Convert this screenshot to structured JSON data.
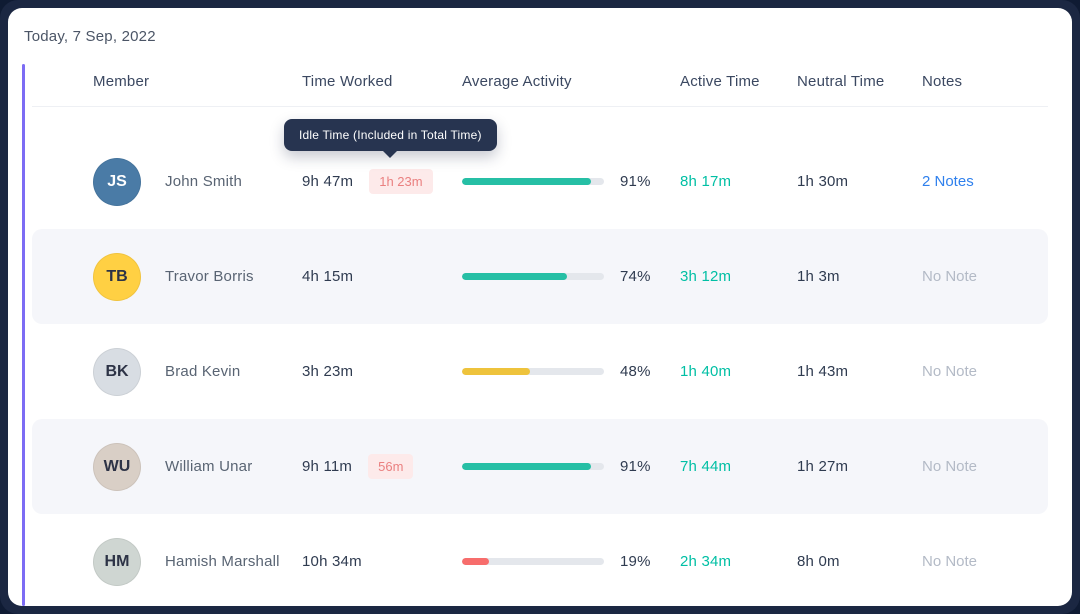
{
  "date_label": "Today, 7 Sep, 2022",
  "colors": {
    "accent": "#7c6cf4",
    "teal": "#26bfa5",
    "yellow": "#eec33c",
    "red": "#f76d6c",
    "link_blue": "#2f80ed"
  },
  "columns": {
    "member": "Member",
    "time_worked": "Time Worked",
    "avg_activity": "Average Activity",
    "active_time": "Active Time",
    "neutral_time": "Neutral Time",
    "notes": "Notes"
  },
  "tooltip": {
    "text": "Idle Time (Included in Total Time)"
  },
  "rows": [
    {
      "name": "John Smith",
      "initials": "JS",
      "avatar_bg": "#4a7ba6",
      "avatar_fg": "#ffffff",
      "time_worked": "9h 47m",
      "idle_time": "1h 23m",
      "activity_pct": "91%",
      "bar_color": "#26bfa5",
      "active_time": "8h 17m",
      "neutral_time": "1h 30m",
      "notes": "2 Notes"
    },
    {
      "name": "Travor Borris",
      "initials": "TB",
      "avatar_bg": "#ffd043",
      "avatar_fg": "#2d3346",
      "time_worked": "4h 15m",
      "activity_pct": "74%",
      "bar_color": "#26bfa5",
      "active_time": "3h 12m",
      "neutral_time": "1h 3m",
      "notes": "No Note"
    },
    {
      "name": "Brad Kevin",
      "initials": "BK",
      "avatar_bg": "#d8dde3",
      "avatar_fg": "#2d3346",
      "time_worked": "3h 23m",
      "activity_pct": "48%",
      "bar_color": "#eec33c",
      "active_time": "1h 40m",
      "neutral_time": "1h 43m",
      "notes": "No Note"
    },
    {
      "name": "William Unar",
      "initials": "WU",
      "avatar_bg": "#d9cfc6",
      "avatar_fg": "#2d3346",
      "time_worked": "9h 11m",
      "idle_time": "56m",
      "activity_pct": "91%",
      "bar_color": "#26bfa5",
      "active_time": "7h 44m",
      "neutral_time": "1h 27m",
      "notes": "No Note"
    },
    {
      "name": "Hamish Marshall",
      "initials": "HM",
      "avatar_bg": "#cfd6d2",
      "avatar_fg": "#2d3346",
      "time_worked": "10h 34m",
      "activity_pct": "19%",
      "bar_color": "#f76d6c",
      "active_time": "2h 34m",
      "neutral_time": "8h 0m",
      "notes": "No Note"
    }
  ]
}
